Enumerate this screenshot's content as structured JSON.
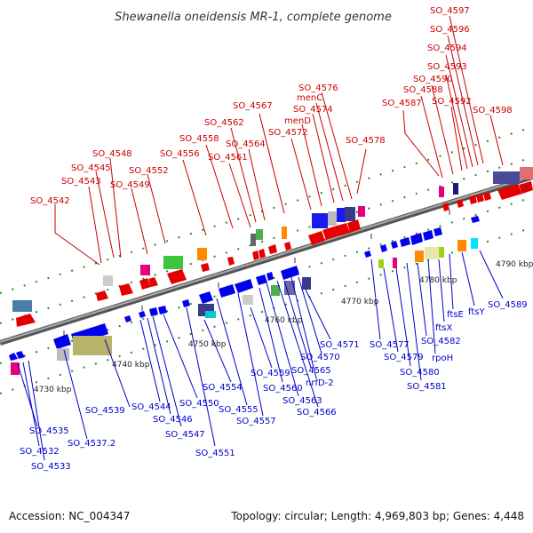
{
  "title": "Shewanella oneidensis MR-1, complete genome",
  "footer": {
    "accession": "Accession: NC_004347",
    "summary": "Topology: circular; Length: 4,969,803 bp; Genes: 4,448"
  },
  "colors": {
    "top_label": "#cc0000",
    "bottom_label": "#0000cc",
    "forward_gene": "#ff0000",
    "reverse_gene": "#0000ff",
    "backbone": "#888888"
  },
  "ticks": [
    {
      "label": "4730 kbp",
      "at": 4730
    },
    {
      "label": "4740 kbp",
      "at": 4740
    },
    {
      "label": "4750 kbp",
      "at": 4750
    },
    {
      "label": "4760 kbp",
      "at": 4760
    },
    {
      "label": "4770 kbp",
      "at": 4770
    },
    {
      "label": "4780 kbp",
      "at": 4780
    },
    {
      "label": "4790 kbp",
      "at": 4790
    }
  ],
  "top_labels": [
    {
      "text": "SO_4542"
    },
    {
      "text": "SO_4543"
    },
    {
      "text": "SO_4545"
    },
    {
      "text": "SO_4548"
    },
    {
      "text": "SO_4549"
    },
    {
      "text": "SO_4552"
    },
    {
      "text": "SO_4556"
    },
    {
      "text": "SO_4558"
    },
    {
      "text": "SO_4561"
    },
    {
      "text": "SO_4562"
    },
    {
      "text": "SO_4564"
    },
    {
      "text": "SO_4567"
    },
    {
      "text": "SO_4572"
    },
    {
      "text": "menD"
    },
    {
      "text": "SO_4574"
    },
    {
      "text": "menC"
    },
    {
      "text": "SO_4576"
    },
    {
      "text": "SO_4578"
    },
    {
      "text": "SO_4587"
    },
    {
      "text": "SO_4588"
    },
    {
      "text": "SO_4590"
    },
    {
      "text": "SO_4592"
    },
    {
      "text": "SO_4593"
    },
    {
      "text": "SO_4594"
    },
    {
      "text": "SO_4596"
    },
    {
      "text": "SO_4597"
    },
    {
      "text": "SO_4598"
    }
  ],
  "bottom_labels": [
    {
      "text": "SO_4535"
    },
    {
      "text": "SO_4532"
    },
    {
      "text": "SO_4533"
    },
    {
      "text": "SO_4537.2"
    },
    {
      "text": "SO_4539"
    },
    {
      "text": "SO_4544"
    },
    {
      "text": "SO_4546"
    },
    {
      "text": "SO_4547"
    },
    {
      "text": "SO_4550"
    },
    {
      "text": "SO_4551"
    },
    {
      "text": "SO_4554"
    },
    {
      "text": "SO_4555"
    },
    {
      "text": "SO_4557"
    },
    {
      "text": "SO_4559"
    },
    {
      "text": "SO_4560"
    },
    {
      "text": "SO_4563"
    },
    {
      "text": "SO_4566"
    },
    {
      "text": "SO_4565"
    },
    {
      "text": "nrfD-2"
    },
    {
      "text": "SO_4570"
    },
    {
      "text": "SO_4571"
    },
    {
      "text": "SO_4577"
    },
    {
      "text": "SO_4579"
    },
    {
      "text": "SO_4580"
    },
    {
      "text": "SO_4581"
    },
    {
      "text": "SO_4582"
    },
    {
      "text": "rpoH"
    },
    {
      "text": "ftsX"
    },
    {
      "text": "ftsE"
    },
    {
      "text": "ftsY"
    },
    {
      "text": "SO_4589"
    }
  ]
}
